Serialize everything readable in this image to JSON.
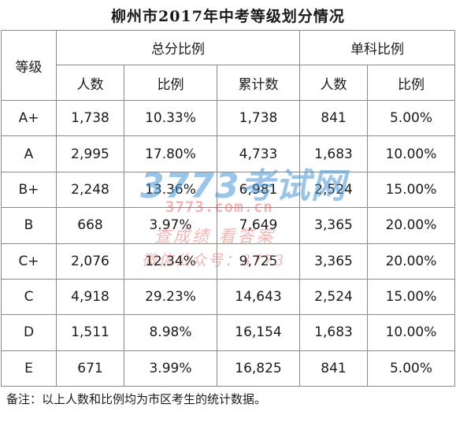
{
  "title": "柳州市2017年中考等级划分情况",
  "header": {
    "grade": "等级",
    "total_group": "总分比例",
    "single_group": "单科比例",
    "sub": [
      "人数",
      "比例",
      "累计数",
      "人数",
      "比例"
    ]
  },
  "rows": [
    [
      "A+",
      "1,738",
      "10.33%",
      "1,738",
      "841",
      "5.00%"
    ],
    [
      "A",
      "2,995",
      "17.80%",
      "4,733",
      "1,683",
      "10.00%"
    ],
    [
      "B+",
      "2,248",
      "13.36%",
      "6,981",
      "2,524",
      "15.00%"
    ],
    [
      "B",
      "668",
      "3.97%",
      "7,649",
      "3,365",
      "20.00%"
    ],
    [
      "C+",
      "2,076",
      "12.34%",
      "9,725",
      "3,365",
      "20.00%"
    ],
    [
      "C",
      "4,918",
      "29.23%",
      "14,643",
      "2,524",
      "15.00%"
    ],
    [
      "D",
      "1,511",
      "8.98%",
      "16,154",
      "1,683",
      "10.00%"
    ],
    [
      "E",
      "671",
      "3.99%",
      "16,825",
      "841",
      "5.00%"
    ]
  ],
  "note": "备注：以上人数和比例均为市区考生的统计数据。",
  "watermark": {
    "brand": "3773考试网",
    "url": "3773.com.cn",
    "line1": "查成绩 看答案",
    "line2": "微信公众号：3773"
  }
}
